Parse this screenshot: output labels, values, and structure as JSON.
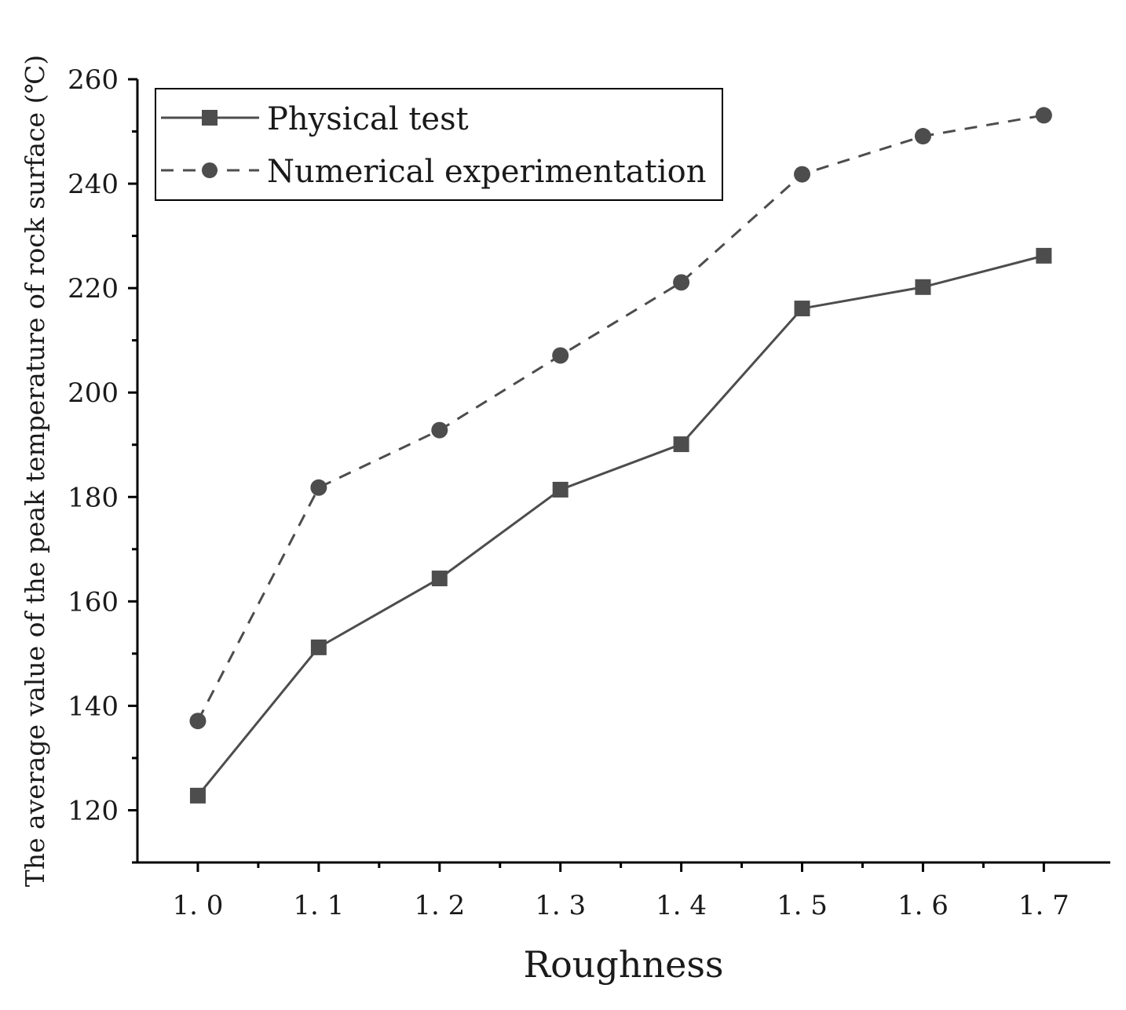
{
  "chart_data": {
    "type": "line",
    "title": "",
    "xlabel": "Roughness",
    "ylabel": "The average value of the peak temperature of rock surface (℃)",
    "x": [
      1.0,
      1.1,
      1.2,
      1.3,
      1.4,
      1.5,
      1.6,
      1.7
    ],
    "x_tick_labels": [
      "1. 0",
      "1. 1",
      "1. 2",
      "1. 3",
      "1. 4",
      "1. 5",
      "1. 6",
      "1. 7"
    ],
    "y_ticks": [
      120,
      140,
      160,
      180,
      200,
      220,
      240,
      260
    ],
    "y_tick_labels": [
      "120",
      "140",
      "160",
      "180",
      "200",
      "220",
      "240",
      "260"
    ],
    "xlim": [
      0.95,
      1.755
    ],
    "ylim": [
      110,
      260
    ],
    "grid": false,
    "legend_position": "top-left",
    "series": [
      {
        "name": "Physical test",
        "marker": "square",
        "line_style": "solid",
        "color": "#4d4d4d",
        "values": [
          122.8,
          151.2,
          164.4,
          181.4,
          190.1,
          216.1,
          220.2,
          226.2
        ]
      },
      {
        "name": "Numerical experimentation",
        "marker": "circle",
        "line_style": "dashed",
        "color": "#4d4d4d",
        "values": [
          137.1,
          181.8,
          192.8,
          207.1,
          221.1,
          241.8,
          249.1,
          253.1
        ]
      }
    ]
  }
}
